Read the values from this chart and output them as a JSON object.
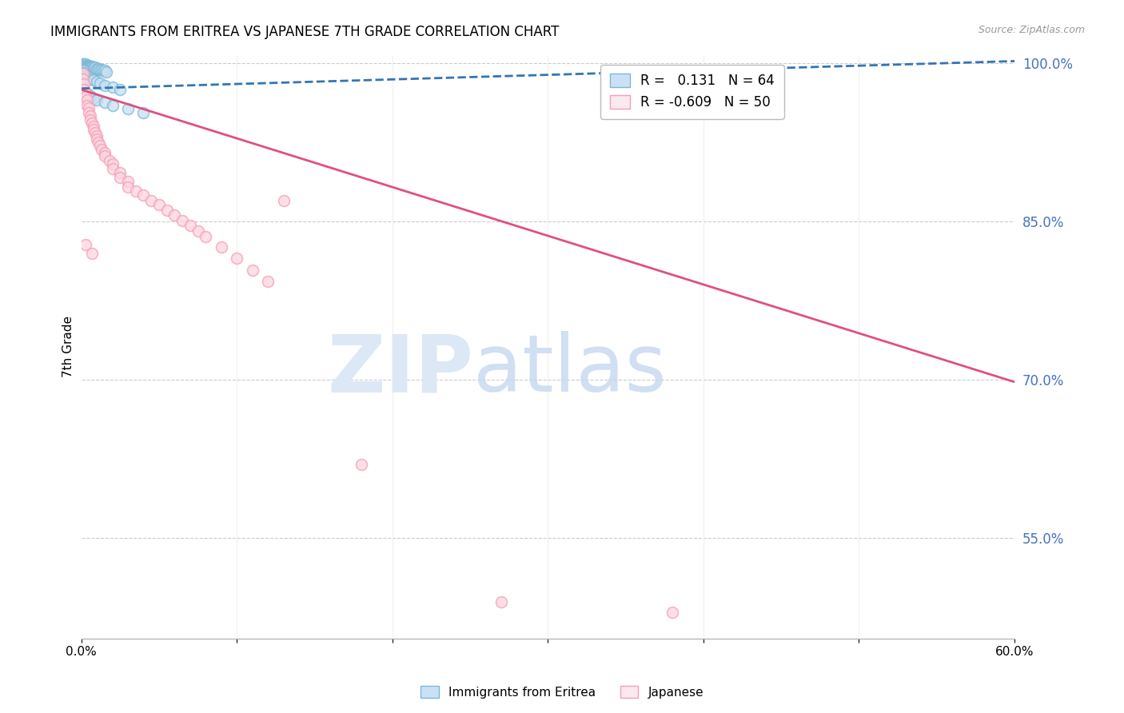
{
  "title": "IMMIGRANTS FROM ERITREA VS JAPANESE 7TH GRADE CORRELATION CHART",
  "source": "Source: ZipAtlas.com",
  "ylabel": "7th Grade",
  "right_yticks": [
    "100.0%",
    "85.0%",
    "70.0%",
    "55.0%"
  ],
  "right_ytick_vals": [
    1.0,
    0.85,
    0.7,
    0.55
  ],
  "legend_blue_r": "0.131",
  "legend_blue_n": "64",
  "legend_pink_r": "-0.609",
  "legend_pink_n": "50",
  "blue_color": "#7ab8d9",
  "pink_color": "#f4a0b5",
  "blue_line_color": "#3375b5",
  "pink_line_color": "#e05080",
  "blue_scatter": [
    [
      0.0,
      0.998
    ],
    [
      0.0,
      0.997
    ],
    [
      0.001,
      0.999
    ],
    [
      0.001,
      0.998
    ],
    [
      0.001,
      0.997
    ],
    [
      0.001,
      0.996
    ],
    [
      0.002,
      0.999
    ],
    [
      0.002,
      0.998
    ],
    [
      0.002,
      0.997
    ],
    [
      0.002,
      0.996
    ],
    [
      0.002,
      0.995
    ],
    [
      0.003,
      0.999
    ],
    [
      0.003,
      0.998
    ],
    [
      0.003,
      0.997
    ],
    [
      0.003,
      0.996
    ],
    [
      0.003,
      0.995
    ],
    [
      0.004,
      0.998
    ],
    [
      0.004,
      0.997
    ],
    [
      0.004,
      0.996
    ],
    [
      0.004,
      0.995
    ],
    [
      0.005,
      0.998
    ],
    [
      0.005,
      0.997
    ],
    [
      0.005,
      0.996
    ],
    [
      0.005,
      0.995
    ],
    [
      0.006,
      0.997
    ],
    [
      0.006,
      0.996
    ],
    [
      0.006,
      0.995
    ],
    [
      0.007,
      0.997
    ],
    [
      0.007,
      0.996
    ],
    [
      0.008,
      0.996
    ],
    [
      0.008,
      0.995
    ],
    [
      0.009,
      0.996
    ],
    [
      0.01,
      0.995
    ],
    [
      0.01,
      0.994
    ],
    [
      0.011,
      0.995
    ],
    [
      0.012,
      0.994
    ],
    [
      0.013,
      0.994
    ],
    [
      0.014,
      0.993
    ],
    [
      0.015,
      0.993
    ],
    [
      0.016,
      0.992
    ],
    [
      0.001,
      0.993
    ],
    [
      0.001,
      0.991
    ],
    [
      0.002,
      0.99
    ],
    [
      0.003,
      0.989
    ],
    [
      0.004,
      0.988
    ],
    [
      0.005,
      0.987
    ],
    [
      0.006,
      0.986
    ],
    [
      0.007,
      0.985
    ],
    [
      0.008,
      0.984
    ],
    [
      0.01,
      0.983
    ],
    [
      0.012,
      0.981
    ],
    [
      0.015,
      0.979
    ],
    [
      0.02,
      0.977
    ],
    [
      0.025,
      0.975
    ],
    [
      0.002,
      0.975
    ],
    [
      0.003,
      0.973
    ],
    [
      0.004,
      0.971
    ],
    [
      0.006,
      0.969
    ],
    [
      0.008,
      0.967
    ],
    [
      0.01,
      0.965
    ],
    [
      0.015,
      0.963
    ],
    [
      0.02,
      0.96
    ],
    [
      0.03,
      0.957
    ],
    [
      0.04,
      0.953
    ]
  ],
  "pink_scatter": [
    [
      0.001,
      0.99
    ],
    [
      0.001,
      0.985
    ],
    [
      0.002,
      0.98
    ],
    [
      0.002,
      0.975
    ],
    [
      0.003,
      0.972
    ],
    [
      0.003,
      0.968
    ],
    [
      0.004,
      0.965
    ],
    [
      0.004,
      0.96
    ],
    [
      0.005,
      0.958
    ],
    [
      0.005,
      0.953
    ],
    [
      0.006,
      0.95
    ],
    [
      0.006,
      0.946
    ],
    [
      0.007,
      0.943
    ],
    [
      0.008,
      0.94
    ],
    [
      0.008,
      0.937
    ],
    [
      0.009,
      0.934
    ],
    [
      0.01,
      0.931
    ],
    [
      0.01,
      0.928
    ],
    [
      0.011,
      0.925
    ],
    [
      0.012,
      0.922
    ],
    [
      0.013,
      0.918
    ],
    [
      0.015,
      0.915
    ],
    [
      0.015,
      0.912
    ],
    [
      0.018,
      0.908
    ],
    [
      0.02,
      0.905
    ],
    [
      0.02,
      0.9
    ],
    [
      0.025,
      0.896
    ],
    [
      0.025,
      0.892
    ],
    [
      0.03,
      0.888
    ],
    [
      0.03,
      0.883
    ],
    [
      0.035,
      0.879
    ],
    [
      0.04,
      0.875
    ],
    [
      0.045,
      0.87
    ],
    [
      0.05,
      0.866
    ],
    [
      0.055,
      0.861
    ],
    [
      0.06,
      0.856
    ],
    [
      0.065,
      0.851
    ],
    [
      0.07,
      0.846
    ],
    [
      0.075,
      0.841
    ],
    [
      0.08,
      0.836
    ],
    [
      0.09,
      0.826
    ],
    [
      0.1,
      0.815
    ],
    [
      0.11,
      0.804
    ],
    [
      0.12,
      0.793
    ],
    [
      0.003,
      0.828
    ],
    [
      0.007,
      0.82
    ],
    [
      0.13,
      0.87
    ],
    [
      0.18,
      0.62
    ],
    [
      0.27,
      0.49
    ],
    [
      0.38,
      0.48
    ]
  ],
  "blue_trend_x": [
    0.0,
    0.6
  ],
  "blue_trend_y": [
    0.976,
    1.002
  ],
  "pink_trend_x": [
    0.0,
    0.6
  ],
  "pink_trend_y": [
    0.975,
    0.698
  ],
  "xlim": [
    0.0,
    0.6
  ],
  "ylim": [
    0.455,
    1.008
  ],
  "grid_yticks": [
    1.0,
    0.85,
    0.7,
    0.55
  ],
  "xtick_positions": [
    0.0,
    0.1,
    0.2,
    0.3,
    0.4,
    0.5,
    0.6
  ],
  "background_color": "#ffffff"
}
